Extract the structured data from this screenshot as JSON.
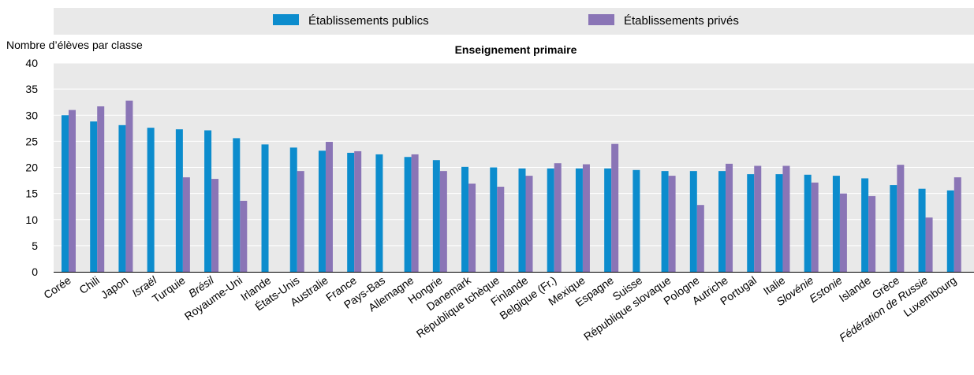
{
  "chart_data": {
    "type": "bar",
    "title": "Enseignement primaire",
    "ylabel": "Nombre d’élèves par classe",
    "xlabel": "",
    "ylim": [
      0,
      40
    ],
    "yticks": [
      0,
      5,
      10,
      15,
      20,
      25,
      30,
      35,
      40
    ],
    "grid": true,
    "legend_position": "top",
    "categories": [
      "Corée",
      "Chili",
      "Japon",
      "Israël",
      "Turquie",
      "Brésil",
      "Royaume-Uni",
      "Irlande",
      "États-Unis",
      "Australie",
      "France",
      "Pays-Bas",
      "Allemagne",
      "Hongrie",
      "Danemark",
      "République tchèque",
      "Finlande",
      "Belgique (Fr.)",
      "Mexique",
      "Espagne",
      "Suisse",
      "République slovaque",
      "Pologne",
      "Autriche",
      "Portugal",
      "Italie",
      "Slovénie",
      "Estonie",
      "Islande",
      "Grèce",
      "Fédération de Russie",
      "Luxembourg"
    ],
    "italic_categories": [
      "Israël",
      "Brésil",
      "Slovénie",
      "Estonie",
      "Fédération de Russie"
    ],
    "series": [
      {
        "name": "Établissements publics",
        "color": "#0c8ccd",
        "values": [
          30.0,
          28.8,
          28.1,
          27.6,
          27.3,
          27.1,
          25.6,
          24.4,
          23.8,
          23.2,
          22.8,
          22.5,
          22.0,
          21.4,
          20.1,
          20.0,
          19.8,
          19.8,
          19.8,
          19.8,
          19.5,
          19.3,
          19.3,
          19.3,
          18.7,
          18.7,
          18.6,
          18.4,
          17.9,
          16.6,
          15.9,
          15.6
        ]
      },
      {
        "name": "Établissements privés",
        "color": "#8a75b6",
        "values": [
          31.0,
          31.7,
          32.8,
          null,
          18.1,
          17.8,
          13.6,
          null,
          19.3,
          24.9,
          23.1,
          null,
          22.5,
          19.3,
          16.9,
          16.3,
          18.4,
          20.8,
          20.6,
          24.5,
          null,
          18.4,
          12.8,
          20.7,
          20.3,
          20.3,
          17.1,
          15.0,
          14.5,
          20.5,
          10.4,
          18.1
        ]
      }
    ]
  }
}
